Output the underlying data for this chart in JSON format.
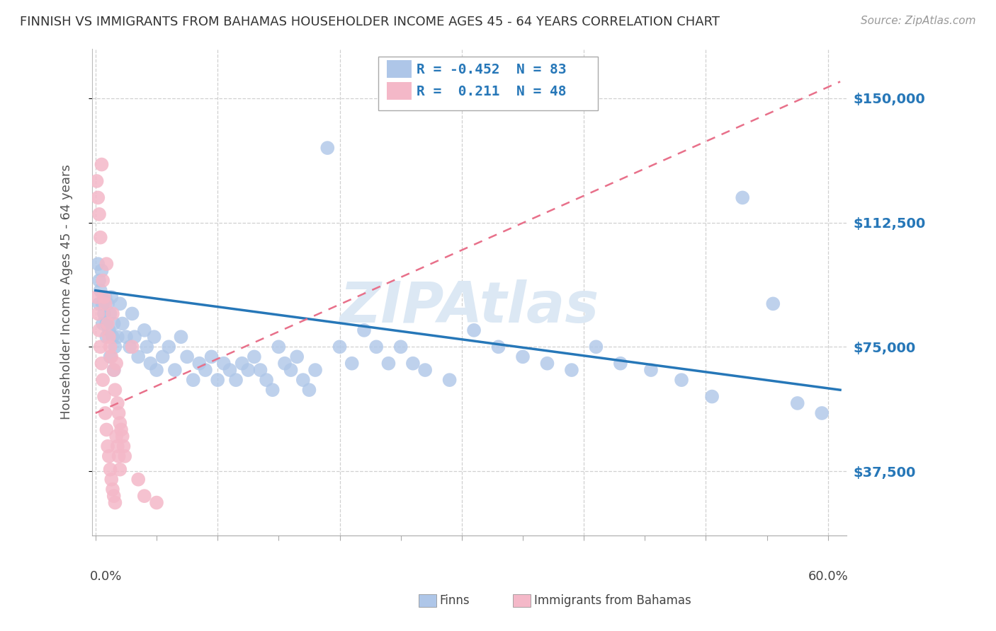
{
  "title": "FINNISH VS IMMIGRANTS FROM BAHAMAS HOUSEHOLDER INCOME AGES 45 - 64 YEARS CORRELATION CHART",
  "source": "Source: ZipAtlas.com",
  "ylabel": "Householder Income Ages 45 - 64 years",
  "ytick_values": [
    37500,
    75000,
    112500,
    150000
  ],
  "ylim": [
    18000,
    165000
  ],
  "xlim": [
    -0.003,
    0.615
  ],
  "legend_entry1": {
    "color": "#aec6e8",
    "R": "-0.452",
    "N": "83"
  },
  "legend_entry2": {
    "color": "#f4b8c8",
    "R": " 0.211",
    "N": "48"
  },
  "finns_color": "#aec6e8",
  "bahamas_color": "#f4b8c8",
  "trend_finn_color": "#2677b8",
  "trend_bahamas_color": "#e8708a",
  "background_color": "#ffffff",
  "grid_color": "#d0d0d0",
  "title_color": "#333333",
  "right_tick_color": "#2677b8",
  "watermark_color": "#dce8f4",
  "finns_label": "Finns",
  "bahamas_label": "Immigrants from Bahamas",
  "finns_x": [
    0.002,
    0.003,
    0.004,
    0.005,
    0.006,
    0.007,
    0.008,
    0.009,
    0.01,
    0.011,
    0.012,
    0.013,
    0.014,
    0.015,
    0.016,
    0.018,
    0.02,
    0.022,
    0.025,
    0.028,
    0.03,
    0.032,
    0.035,
    0.04,
    0.042,
    0.045,
    0.048,
    0.05,
    0.055,
    0.06,
    0.065,
    0.07,
    0.075,
    0.08,
    0.085,
    0.09,
    0.095,
    0.1,
    0.105,
    0.11,
    0.115,
    0.12,
    0.125,
    0.13,
    0.135,
    0.14,
    0.145,
    0.15,
    0.155,
    0.16,
    0.165,
    0.17,
    0.175,
    0.18,
    0.19,
    0.2,
    0.21,
    0.22,
    0.23,
    0.24,
    0.25,
    0.26,
    0.27,
    0.29,
    0.31,
    0.33,
    0.35,
    0.37,
    0.39,
    0.41,
    0.43,
    0.455,
    0.48,
    0.505,
    0.53,
    0.555,
    0.575,
    0.595,
    0.003,
    0.006,
    0.009,
    0.012,
    0.015
  ],
  "finns_y": [
    100000,
    95000,
    92000,
    98000,
    88000,
    85000,
    90000,
    82000,
    88000,
    80000,
    85000,
    90000,
    78000,
    82000,
    75000,
    78000,
    88000,
    82000,
    78000,
    75000,
    85000,
    78000,
    72000,
    80000,
    75000,
    70000,
    78000,
    68000,
    72000,
    75000,
    68000,
    78000,
    72000,
    65000,
    70000,
    68000,
    72000,
    65000,
    70000,
    68000,
    65000,
    70000,
    68000,
    72000,
    68000,
    65000,
    62000,
    75000,
    70000,
    68000,
    72000,
    65000,
    62000,
    68000,
    135000,
    75000,
    70000,
    80000,
    75000,
    70000,
    75000,
    70000,
    68000,
    65000,
    80000,
    75000,
    72000,
    70000,
    68000,
    75000,
    70000,
    68000,
    65000,
    60000,
    120000,
    88000,
    58000,
    55000,
    88000,
    82000,
    78000,
    72000,
    68000
  ],
  "bahamas_x": [
    0.001,
    0.002,
    0.003,
    0.004,
    0.005,
    0.006,
    0.007,
    0.008,
    0.009,
    0.01,
    0.011,
    0.012,
    0.013,
    0.014,
    0.015,
    0.016,
    0.017,
    0.018,
    0.019,
    0.02,
    0.021,
    0.022,
    0.023,
    0.024,
    0.001,
    0.002,
    0.003,
    0.004,
    0.005,
    0.006,
    0.007,
    0.008,
    0.009,
    0.01,
    0.011,
    0.012,
    0.013,
    0.014,
    0.015,
    0.016,
    0.017,
    0.018,
    0.019,
    0.02,
    0.03,
    0.035,
    0.04,
    0.05
  ],
  "bahamas_y": [
    125000,
    120000,
    115000,
    108000,
    130000,
    95000,
    90000,
    88000,
    100000,
    82000,
    78000,
    75000,
    72000,
    85000,
    68000,
    62000,
    70000,
    58000,
    55000,
    52000,
    50000,
    48000,
    45000,
    42000,
    90000,
    85000,
    80000,
    75000,
    70000,
    65000,
    60000,
    55000,
    50000,
    45000,
    42000,
    38000,
    35000,
    32000,
    30000,
    28000,
    48000,
    45000,
    42000,
    38000,
    75000,
    35000,
    30000,
    28000
  ],
  "finn_trend_x0": 0.0,
  "finn_trend_x1": 0.61,
  "finn_trend_y0": 92000,
  "finn_trend_y1": 62000,
  "bah_trend_x0": 0.0,
  "bah_trend_x1": 0.61,
  "bah_trend_y0": 55000,
  "bah_trend_y1": 155000
}
